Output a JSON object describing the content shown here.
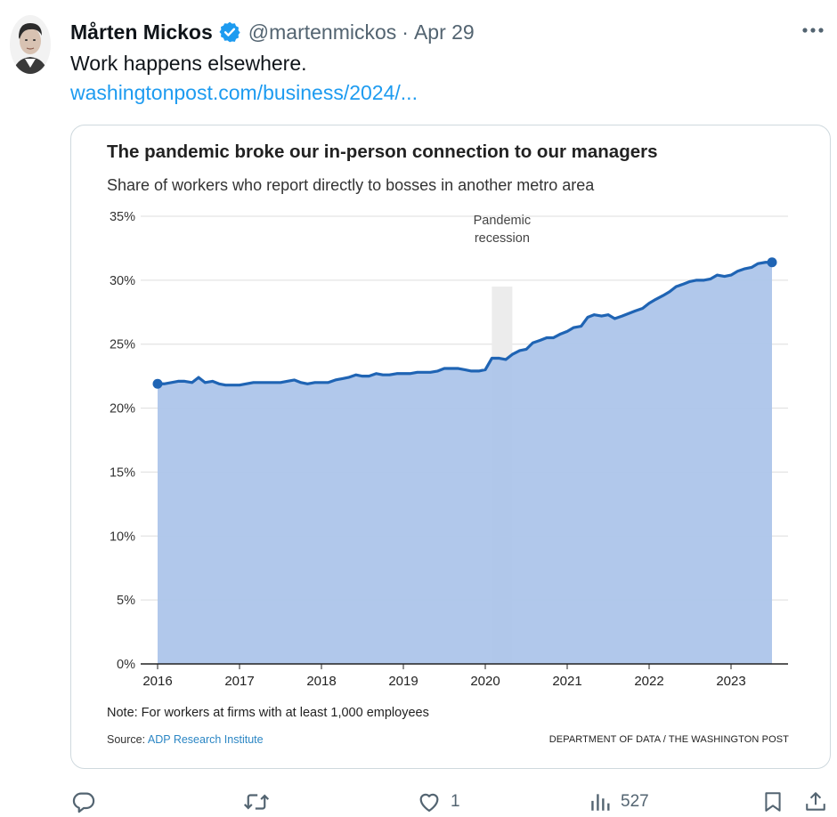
{
  "tweet": {
    "display_name": "Mårten Mickos",
    "handle": "@martenmickos",
    "separator": "·",
    "date": "Apr 29",
    "text": "Work happens elsewhere.",
    "link_text": "washingtonpost.com/business/2024/...",
    "verified": true
  },
  "icons": {
    "more": "more-horizontal-icon",
    "verified": "verified-badge-icon",
    "reply": "reply-icon",
    "retweet": "retweet-icon",
    "like": "heart-icon",
    "views": "views-icon",
    "bookmark": "bookmark-icon",
    "share": "share-icon"
  },
  "actions": {
    "like_count": "1",
    "view_count": "527"
  },
  "colors": {
    "link": "#1d9bf0",
    "verified": "#1d9bf0",
    "muted": "#536471",
    "line": "#1f64b4",
    "area": "#adc5ea",
    "recession_band": "#ececec"
  },
  "chart_data": {
    "type": "area",
    "title": "The pandemic broke our in-person connection to our managers",
    "subtitle": "Share of workers who report directly to bosses in another metro area",
    "note": "Note: For workers at firms with at least 1,000 employees",
    "source_prefix": "Source: ",
    "source_name": "ADP Research Institute",
    "credit": "DEPARTMENT OF DATA / THE WASHINGTON POST",
    "annotation": [
      "Pandemic",
      "recession"
    ],
    "annotation_range": [
      2020.08,
      2020.33
    ],
    "ylim": [
      0,
      35
    ],
    "y_ticks": [
      0,
      5,
      10,
      15,
      20,
      25,
      30,
      35
    ],
    "y_tick_labels": [
      "0%",
      "5%",
      "10%",
      "15%",
      "20%",
      "25%",
      "30%",
      "35%"
    ],
    "xlim": [
      2016,
      2023.5
    ],
    "x_ticks": [
      2016,
      2017,
      2018,
      2019,
      2020,
      2021,
      2022,
      2023
    ],
    "x_tick_labels": [
      "2016",
      "2017",
      "2018",
      "2019",
      "2020",
      "2021",
      "2022",
      "2023"
    ],
    "grid": true,
    "x": [
      2016.0,
      2016.08,
      2016.17,
      2016.25,
      2016.33,
      2016.42,
      2016.5,
      2016.58,
      2016.67,
      2016.75,
      2016.83,
      2016.92,
      2017.0,
      2017.08,
      2017.17,
      2017.25,
      2017.33,
      2017.42,
      2017.5,
      2017.58,
      2017.67,
      2017.75,
      2017.83,
      2017.92,
      2018.0,
      2018.08,
      2018.17,
      2018.25,
      2018.33,
      2018.42,
      2018.5,
      2018.58,
      2018.67,
      2018.75,
      2018.83,
      2018.92,
      2019.0,
      2019.08,
      2019.17,
      2019.25,
      2019.33,
      2019.42,
      2019.5,
      2019.58,
      2019.67,
      2019.75,
      2019.83,
      2019.92,
      2020.0,
      2020.08,
      2020.17,
      2020.25,
      2020.33,
      2020.42,
      2020.5,
      2020.58,
      2020.67,
      2020.75,
      2020.83,
      2020.92,
      2021.0,
      2021.08,
      2021.17,
      2021.25,
      2021.33,
      2021.42,
      2021.5,
      2021.58,
      2021.67,
      2021.75,
      2021.83,
      2021.92,
      2022.0,
      2022.08,
      2022.17,
      2022.25,
      2022.33,
      2022.42,
      2022.5,
      2022.58,
      2022.67,
      2022.75,
      2022.83,
      2022.92,
      2023.0,
      2023.08,
      2023.17,
      2023.25,
      2023.33,
      2023.42,
      2023.5
    ],
    "y": [
      21.9,
      21.9,
      22.0,
      22.1,
      22.1,
      22.0,
      22.4,
      22.0,
      22.1,
      21.9,
      21.8,
      21.8,
      21.8,
      21.9,
      22.0,
      22.0,
      22.0,
      22.0,
      22.0,
      22.1,
      22.2,
      22.0,
      21.9,
      22.0,
      22.0,
      22.0,
      22.2,
      22.3,
      22.4,
      22.6,
      22.5,
      22.5,
      22.7,
      22.6,
      22.6,
      22.7,
      22.7,
      22.7,
      22.8,
      22.8,
      22.8,
      22.9,
      23.1,
      23.1,
      23.1,
      23.0,
      22.9,
      22.9,
      23.0,
      23.9,
      23.9,
      23.8,
      24.2,
      24.5,
      24.6,
      25.1,
      25.3,
      25.5,
      25.5,
      25.8,
      26.0,
      26.3,
      26.4,
      27.1,
      27.3,
      27.2,
      27.3,
      27.0,
      27.2,
      27.4,
      27.6,
      27.8,
      28.2,
      28.5,
      28.8,
      29.1,
      29.5,
      29.7,
      29.9,
      30.0,
      30.0,
      30.1,
      30.4,
      30.3,
      30.4,
      30.7,
      30.9,
      31.0,
      31.3,
      31.4,
      31.4
    ]
  }
}
